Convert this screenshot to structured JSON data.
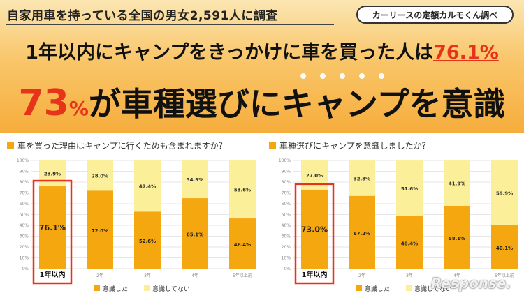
{
  "header": {
    "survey_text": "自家用車を持っている全国の男女2,591人に調査",
    "source_text": "カーリースの定額カルモくん調べ",
    "headline1_prefix": "1年以内にキャンプをきっかけに車を買った人は",
    "headline1_value": "76.1%",
    "headline2_value": "73",
    "headline2_unit": "%",
    "headline2_rest": "が車種選びにキャンプを意識"
  },
  "colors": {
    "orange": "#f5a70f",
    "yellow": "#fbef9a",
    "red": "#e8331b"
  },
  "chart_data": [
    {
      "type": "bar",
      "title": "車を買った理由はキャンプに行くためも含まれますか？",
      "categories": [
        "1年以内",
        "2年",
        "3年",
        "4年",
        "5年以上前"
      ],
      "series": [
        {
          "name": "意識した",
          "values": [
            76.1,
            72.0,
            52.6,
            65.1,
            46.4
          ]
        },
        {
          "name": "意識してない",
          "values": [
            23.9,
            28.0,
            47.4,
            34.9,
            53.6
          ]
        }
      ],
      "value_labels": {
        "bottom": [
          "76.1%",
          "72.0%",
          "52.6%",
          "65.1%",
          "46.4%"
        ],
        "top": [
          "23.9%",
          "28.0%",
          "47.4%",
          "34.9%",
          "53.6%"
        ]
      },
      "yticks": [
        "0%",
        "10%",
        "20%",
        "30%",
        "40%",
        "50%",
        "60%",
        "70%",
        "80%",
        "90%",
        "100%"
      ],
      "ylim": [
        0,
        100
      ],
      "stacked": true,
      "legend": "bottom",
      "highlight": 0
    },
    {
      "type": "bar",
      "title": "車種選びにキャンプを意識しましたか？",
      "categories": [
        "1年以内",
        "2年",
        "3年",
        "4年",
        "5年以上前"
      ],
      "series": [
        {
          "name": "意識した",
          "values": [
            73.0,
            67.2,
            48.4,
            58.1,
            40.1
          ]
        },
        {
          "name": "意識してない",
          "values": [
            27.0,
            32.8,
            51.6,
            41.9,
            59.9
          ]
        }
      ],
      "value_labels": {
        "bottom": [
          "73.0%",
          "67.2%",
          "48.4%",
          "58.1%",
          "40.1%"
        ],
        "top": [
          "27.0%",
          "32.8%",
          "51.6%",
          "41.9%",
          "59.9%"
        ]
      },
      "yticks": [
        "0%",
        "10%",
        "20%",
        "30%",
        "40%",
        "50%",
        "60%",
        "70%",
        "80%",
        "90%",
        "100%"
      ],
      "ylim": [
        0,
        100
      ],
      "stacked": true,
      "legend": "bottom",
      "highlight": 0
    }
  ],
  "watermark": "Response."
}
